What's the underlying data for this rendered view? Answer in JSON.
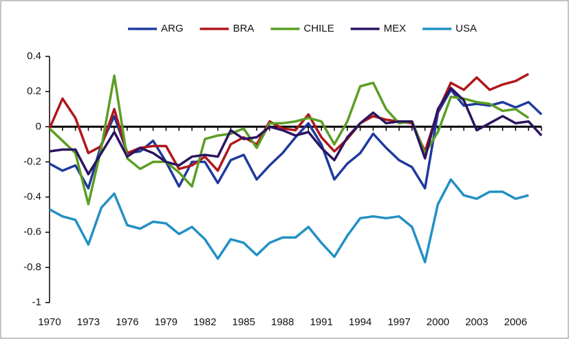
{
  "chart_data": {
    "type": "line",
    "x": [
      1970,
      1971,
      1972,
      1973,
      1974,
      1975,
      1976,
      1977,
      1978,
      1979,
      1980,
      1981,
      1982,
      1983,
      1984,
      1985,
      1986,
      1987,
      1988,
      1989,
      1990,
      1991,
      1992,
      1993,
      1994,
      1995,
      1996,
      1997,
      1998,
      1999,
      2000,
      2001,
      2002,
      2003,
      2004,
      2005,
      2006,
      2007,
      2008
    ],
    "xlim": [
      1970,
      2008
    ],
    "xticks": [
      1970,
      1973,
      1976,
      1979,
      1982,
      1985,
      1988,
      1991,
      1994,
      1997,
      2000,
      2003,
      2006
    ],
    "ylim": [
      -1,
      0.4
    ],
    "yticks": [
      0.4,
      0.2,
      0,
      -0.2,
      -0.4,
      -0.6,
      -0.8,
      -1
    ],
    "legend": "top",
    "series": [
      {
        "name": "ARG",
        "color": "#1f3a9e",
        "values": [
          -0.21,
          -0.25,
          -0.22,
          -0.35,
          -0.1,
          0.06,
          -0.15,
          -0.14,
          -0.08,
          -0.2,
          -0.34,
          -0.2,
          -0.2,
          -0.32,
          -0.19,
          -0.16,
          -0.3,
          -0.22,
          -0.15,
          -0.06,
          0.02,
          -0.1,
          -0.3,
          -0.21,
          -0.15,
          -0.04,
          -0.12,
          -0.19,
          -0.23,
          -0.35,
          0.08,
          0.21,
          0.12,
          0.13,
          0.12,
          0.14,
          0.11,
          0.14,
          0.07
        ]
      },
      {
        "name": "BRA",
        "color": "#b0171b",
        "values": [
          -0.01,
          0.16,
          0.05,
          -0.15,
          -0.11,
          0.1,
          -0.15,
          -0.12,
          -0.11,
          -0.11,
          -0.24,
          -0.22,
          -0.17,
          -0.25,
          -0.1,
          -0.06,
          -0.1,
          0.03,
          -0.01,
          -0.02,
          0.07,
          -0.06,
          -0.14,
          -0.07,
          0.02,
          0.06,
          0.04,
          0.03,
          0.02,
          -0.14,
          0.09,
          0.25,
          0.21,
          0.28,
          0.21,
          0.24,
          0.26,
          0.3,
          null
        ]
      },
      {
        "name": "CHILE",
        "color": "#5a9e23",
        "values": [
          -0.01,
          -0.08,
          -0.15,
          -0.44,
          -0.12,
          0.29,
          -0.18,
          -0.24,
          -0.2,
          -0.2,
          -0.26,
          -0.34,
          -0.07,
          -0.05,
          -0.04,
          -0.01,
          -0.12,
          0.02,
          0.02,
          0.03,
          0.05,
          0.03,
          -0.1,
          0.03,
          0.23,
          0.25,
          0.1,
          0.02,
          0.03,
          -0.15,
          -0.03,
          0.17,
          0.16,
          0.14,
          0.13,
          0.09,
          0.1,
          0.05,
          null
        ]
      },
      {
        "name": "MEX",
        "color": "#2b1460",
        "values": [
          -0.14,
          -0.13,
          -0.13,
          -0.27,
          -0.15,
          -0.03,
          -0.17,
          -0.12,
          -0.15,
          -0.2,
          -0.22,
          -0.17,
          -0.16,
          -0.17,
          -0.02,
          -0.07,
          -0.06,
          0.0,
          -0.02,
          -0.05,
          -0.03,
          -0.12,
          -0.19,
          -0.06,
          0.02,
          0.08,
          0.02,
          0.03,
          0.03,
          -0.18,
          0.1,
          0.22,
          0.15,
          -0.02,
          0.02,
          0.06,
          0.02,
          0.03,
          -0.05
        ]
      },
      {
        "name": "USA",
        "color": "#2290c4",
        "values": [
          -0.47,
          -0.51,
          -0.53,
          -0.67,
          -0.46,
          -0.38,
          -0.56,
          -0.58,
          -0.54,
          -0.55,
          -0.61,
          -0.57,
          -0.64,
          -0.75,
          -0.64,
          -0.66,
          -0.73,
          -0.66,
          -0.63,
          -0.63,
          -0.57,
          -0.66,
          -0.74,
          -0.62,
          -0.52,
          -0.51,
          -0.52,
          -0.51,
          -0.57,
          -0.77,
          -0.44,
          -0.3,
          -0.39,
          -0.41,
          -0.37,
          -0.37,
          -0.41,
          -0.39,
          null
        ]
      }
    ]
  }
}
